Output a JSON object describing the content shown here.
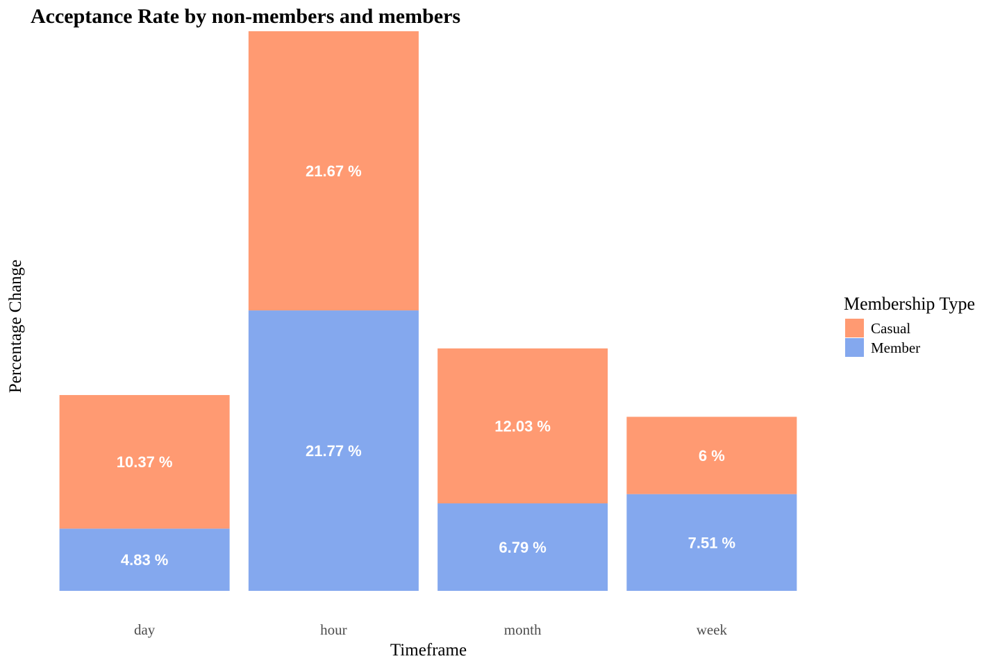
{
  "chart_data": {
    "type": "bar",
    "stacked": true,
    "title": "Acceptance Rate by non-members and members",
    "xlabel": "Timeframe",
    "ylabel": "Percentage Change",
    "categories": [
      "day",
      "hour",
      "month",
      "week"
    ],
    "series": [
      {
        "name": "Member",
        "color": "#84A8EE",
        "values": [
          4.83,
          21.77,
          6.79,
          7.51
        ],
        "labels": [
          "4.83 %",
          "21.77 %",
          "6.79 %",
          "7.51 %"
        ]
      },
      {
        "name": "Casual",
        "color": "#FF9A72",
        "values": [
          10.37,
          21.67,
          12.03,
          6
        ],
        "labels": [
          "10.37 %",
          "21.67 %",
          "12.03 %",
          "6 %"
        ]
      }
    ],
    "ylim": [
      0,
      43.44
    ],
    "grid": false,
    "y_ticks_shown": false,
    "legend": {
      "title": "Membership Type",
      "placement": "right",
      "entries": [
        {
          "name": "Casual",
          "color": "#FF9A72"
        },
        {
          "name": "Member",
          "color": "#84A8EE"
        }
      ]
    }
  }
}
